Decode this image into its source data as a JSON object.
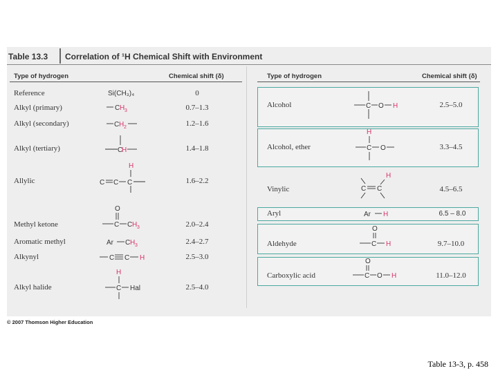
{
  "table": {
    "number": "Table 13.3",
    "title": "Correlation of ¹H Chemical Shift with Environment",
    "headers": {
      "type_left": "Type of hydrogen",
      "shift_left": "Chemical shift (δ)",
      "type_right": "Type of hydrogen",
      "shift_right": "Chemical shift (δ)"
    },
    "left_rows": [
      {
        "type": "Reference",
        "shift": "0"
      },
      {
        "type": "Alkyl (primary)",
        "shift": "0.7–1.3"
      },
      {
        "type": "Alkyl (secondary)",
        "shift": "1.2–1.6"
      },
      {
        "type": "Alkyl (tertiary)",
        "shift": "1.4–1.8"
      },
      {
        "type": "Allylic",
        "shift": "1.6–2.2"
      },
      {
        "type": "Methyl ketone",
        "shift": "2.0–2.4"
      },
      {
        "type": "Aromatic methyl",
        "shift": "2.4–2.7"
      },
      {
        "type": "Alkynyl",
        "shift": "2.5–3.0"
      },
      {
        "type": "Alkyl halide",
        "shift": "2.5–4.0"
      }
    ],
    "right_rows": [
      {
        "type": "Alcohol",
        "shift": "2.5–5.0"
      },
      {
        "type": "Alcohol, ether",
        "shift": "3.3–4.5"
      },
      {
        "type": "Vinylic",
        "shift": "4.5–6.5"
      },
      {
        "type": "Aryl",
        "shift": "6.5 – 8.0"
      },
      {
        "type": "Aldehyde",
        "shift": "9.7–10.0"
      },
      {
        "type": "Carboxylic acid",
        "shift": "11.0–12.0"
      }
    ],
    "structures": {
      "reference": "Si(CH₃)₄",
      "hal": "Hal",
      "ar": "Ar"
    }
  },
  "copyright": "© 2007 Thomson Higher Education",
  "caption": "Table 13-3, p. 458",
  "colors": {
    "highlight_h": "#d6336c",
    "box_border": "#4aa8a0",
    "panel_bg": "#eeeeee"
  }
}
